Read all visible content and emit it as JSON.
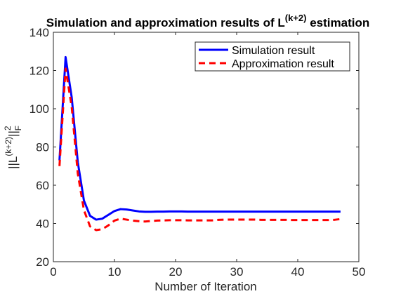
{
  "chart_data": {
    "type": "line",
    "title_main": "Simulation and approximation results of L",
    "title_superscript": "(k+2)",
    "title_suffix": " estimation",
    "xlabel": "Number of Iteration",
    "ylabel_main": "||L",
    "ylabel_superscript": "(k+2)",
    "ylabel_suffix": "||",
    "ylabel_norm_sup": "2",
    "ylabel_norm_sub": "F",
    "xlim": [
      0,
      50
    ],
    "ylim": [
      20,
      140
    ],
    "xticks": [
      0,
      10,
      20,
      30,
      40,
      50
    ],
    "yticks": [
      20,
      40,
      60,
      80,
      100,
      120,
      140
    ],
    "grid": false,
    "legend_position": "top-right",
    "x": [
      1,
      2,
      3,
      4,
      5,
      6,
      7,
      8,
      9,
      10,
      11,
      12,
      13,
      14,
      15,
      16,
      17,
      18,
      19,
      20,
      21,
      22,
      23,
      24,
      25,
      26,
      27,
      28,
      29,
      30,
      31,
      32,
      33,
      34,
      35,
      36,
      37,
      38,
      39,
      40,
      41,
      42,
      43,
      44,
      45,
      46,
      47
    ],
    "series": [
      {
        "name": "Simulation result",
        "color": "#0000ff",
        "dash": "solid",
        "values": [
          73,
          127,
          106,
          72,
          52,
          44,
          42,
          42.5,
          44.5,
          46.5,
          47.5,
          47.3,
          46.8,
          46.3,
          46.1,
          46.1,
          46.2,
          46.2,
          46.3,
          46.3,
          46.3,
          46.2,
          46.2,
          46.2,
          46.2,
          46.2,
          46.2,
          46.2,
          46.2,
          46.2,
          46.2,
          46.2,
          46.2,
          46.2,
          46.2,
          46.2,
          46.2,
          46.2,
          46.2,
          46.2,
          46.2,
          46.2,
          46.2,
          46.2,
          46.2,
          46.2,
          46.2
        ]
      },
      {
        "name": "Approximation result",
        "color": "#ff0000",
        "dash": "dashed",
        "values": [
          70,
          121,
          101,
          66,
          47,
          38.5,
          36.5,
          37,
          39,
          41.5,
          42.5,
          42,
          41.5,
          41.2,
          41,
          41.3,
          41.5,
          41.6,
          41.7,
          41.7,
          41.7,
          41.6,
          41.6,
          41.6,
          41.6,
          41.6,
          41.9,
          42,
          42,
          42,
          42,
          42,
          42,
          41.9,
          41.9,
          41.9,
          41.9,
          41.9,
          41.8,
          41.8,
          41.8,
          41.8,
          41.8,
          41.8,
          41.8,
          41.9,
          42.3
        ]
      }
    ]
  }
}
